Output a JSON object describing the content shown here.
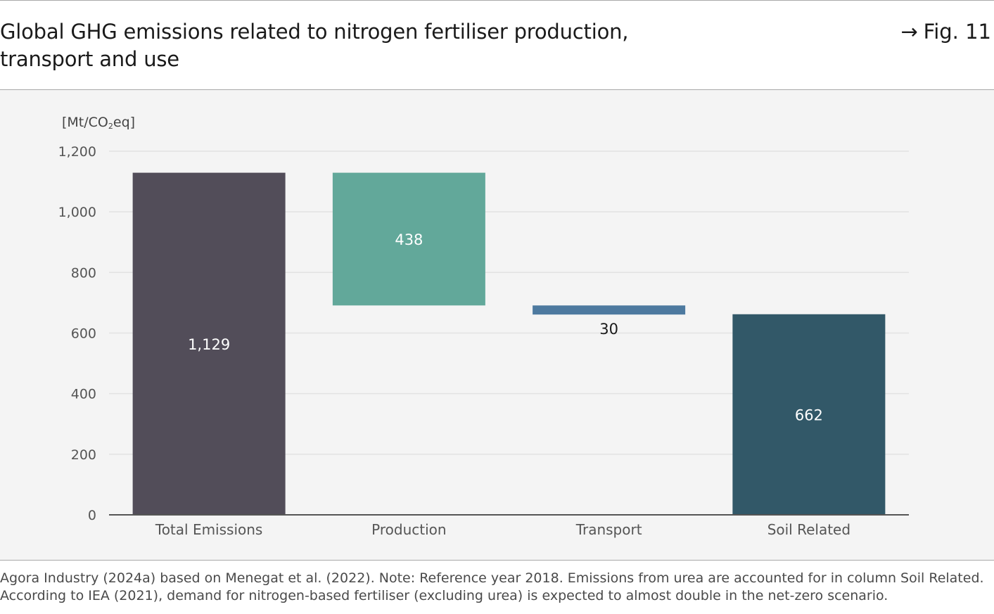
{
  "header": {
    "title_line1": "Global GHG emissions related to nitrogen fertiliser production,",
    "title_line2": "transport and use",
    "figure_arrow": "→",
    "figure_ref": "Fig. 11"
  },
  "colors": {
    "total": "#524d59",
    "production": "#62a89a",
    "transport": "#4d799f",
    "soil": "#325868",
    "grid": "#e2e2e2",
    "axis": "#555555",
    "label_light": "#ffffff",
    "label_dark": "#1a1a1a"
  },
  "chart_data": {
    "type": "waterfall",
    "title": "Global GHG emissions related to nitrogen fertiliser production, transport and use",
    "unit_prefix": "[Mt/CO",
    "unit_sub": "2",
    "unit_suffix": "eq]",
    "ylim": [
      0,
      1200
    ],
    "yticks": [
      0,
      200,
      400,
      600,
      800,
      1000,
      1200
    ],
    "ytick_labels": [
      "0",
      "200",
      "400",
      "600",
      "800",
      "1,000",
      "1,200"
    ],
    "grid": true,
    "categories": [
      "Total Emissions",
      "Production",
      "Transport",
      "Soil Related"
    ],
    "bars": [
      {
        "category": "Total Emissions",
        "start": 0,
        "end": 1129,
        "value": 1129,
        "label": "1,129",
        "color_key": "total",
        "label_pos": "inside",
        "label_color_key": "label_light"
      },
      {
        "category": "Production",
        "start": 691,
        "end": 1129,
        "value": 438,
        "label": "438",
        "color_key": "production",
        "label_pos": "inside",
        "label_color_key": "label_light"
      },
      {
        "category": "Transport",
        "start": 661,
        "end": 691,
        "value": 30,
        "label": "30",
        "color_key": "transport",
        "label_pos": "below",
        "label_color_key": "label_dark"
      },
      {
        "category": "Soil Related",
        "start": 0,
        "end": 662,
        "value": 662,
        "label": "662",
        "color_key": "soil",
        "label_pos": "inside",
        "label_color_key": "label_light"
      }
    ]
  },
  "source": {
    "line1": "Agora Industry (2024a) based on Menegat et al. (2022). Note: Reference year 2018. Emissions from urea are accounted for in column Soil Related.",
    "line2": "According to IEA (2021), demand for nitrogen-based fertiliser (excluding urea) is expected to almost double in the net-zero scenario."
  }
}
